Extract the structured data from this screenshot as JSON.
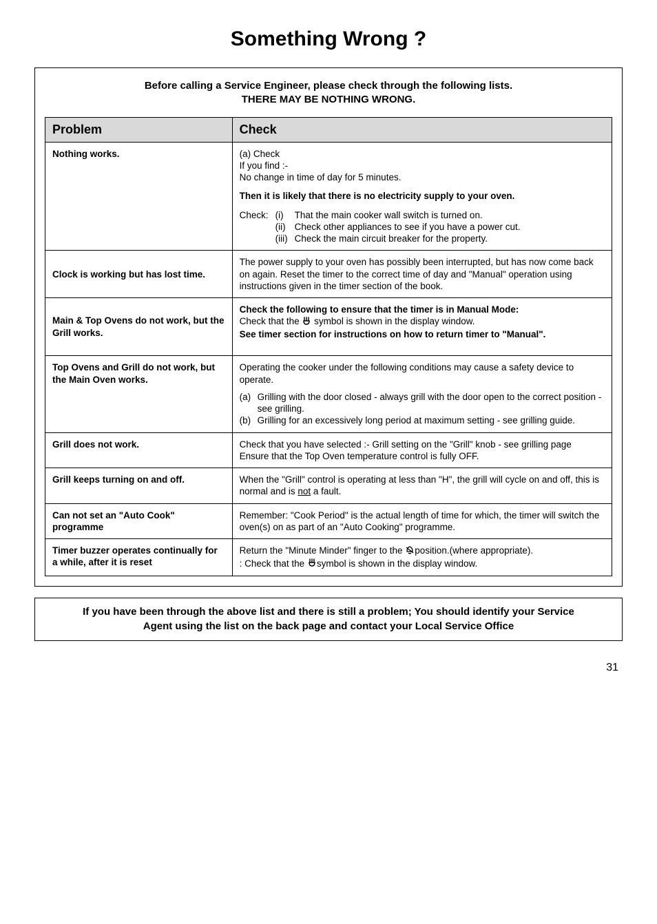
{
  "title": "Something Wrong ?",
  "intro_line1": "Before calling a Service Engineer, please check through the following lists.",
  "intro_line2": "THERE MAY BE NOTHING WRONG.",
  "headers": {
    "problem": "Problem",
    "check": "Check"
  },
  "rows": {
    "nothing_works": {
      "problem": "Nothing works.",
      "a_check": "(a) Check",
      "ifyoufind": "If you find :-",
      "nochange": "No change in time of day for 5 minutes.",
      "then": "Then it is likely that there is no electricity supply to your oven.",
      "check_label": "Check:",
      "i_num": "(i)",
      "i_txt": "That the main cooker wall switch is turned on.",
      "ii_num": "(ii)",
      "ii_txt": "Check other appliances to see if you have a power cut.",
      "iii_num": "(iii)",
      "iii_txt": "Check the main circuit breaker for the property."
    },
    "clock": {
      "problem": "Clock is working but has  lost  time.",
      "check": "The power supply to your oven has possibly been interrupted, but has now come back on again. Reset the timer to the correct time of day and \"Manual\" operation using instructions given in the timer section of the book."
    },
    "main_top": {
      "problem_l1": "Main & Top Ovens do not work, but the Grill works.",
      "check_b1": "Check the following to ensure that the timer is in Manual Mode:",
      "check_l2a": "Check that the ",
      "check_l2b": " symbol is shown in the display window.",
      "check_b2": "See timer section for instructions on how to return timer to \"Manual\"."
    },
    "top_grill": {
      "problem_l1": "Top Ovens and Grill do not work, but the Main Oven works.",
      "check_p1": "Operating the cooker under the following conditions may cause a safety device to operate.",
      "a_lbl": "(a)",
      "a_txt": "Grilling with the door closed - always grill with the door open to the correct position - see grilling.",
      "b_lbl": "(b)",
      "b_txt": "Grilling for an excessively long period at maximum setting - see grilling guide."
    },
    "grill_no_work": {
      "problem": "Grill does not work.",
      "check_l1": "Check that you have selected :-  Grill setting on the \"Grill\" knob - see grilling page",
      "check_l2": "Ensure that the Top Oven temperature control is fully OFF."
    },
    "grill_on_off": {
      "problem": "Grill keeps turning on and off.",
      "check_a": "When the \"Grill\" control is operating at less than \"H\", the grill will cycle on and off, this is normal and is ",
      "check_not": "not",
      "check_b": " a fault."
    },
    "auto_cook": {
      "problem": "Can not set an \"Auto Cook\" programme",
      "check": "Remember: \"Cook Period\" is the actual length of time for which, the timer will switch the oven(s) on as part of an \"Auto Cooking\" programme."
    },
    "buzzer": {
      "problem": "Timer buzzer operates continually for a while, after it is reset",
      "check_l1a": "Return the  \"Minute Minder\" finger to the ",
      "check_l1b": "position.(where appropriate).",
      "check_l2a": ": Check that the ",
      "check_l2b": "symbol is shown in the display window."
    }
  },
  "footer_l1": "If you have been through the above list and there is still a problem; You should identify your Service",
  "footer_l2": "Agent using the list on the back page and contact your Local Service Office",
  "page_number": "31",
  "icons": {
    "pot_svg": "<svg width='14' height='14' viewBox='0 0 14 14'><path d='M4 2 L4 6 M7 2 L7 6 M10 2 L10 6 M3 7 Q3 12 7 12 Q11 12 11 7 Z' fill='none' stroke='#000' stroke-width='1.4' stroke-linecap='round'/></svg>",
    "bell_svg": "<svg width='14' height='14' viewBox='0 0 14 14'><path d='M7 2 Q3 3 3 9 L11 9 Q11 3 7 2 Z M5 11 Q7 13 9 11' fill='none' stroke='#000' stroke-width='1.3'/><line x1='2' y1='3' x2='12' y2='11' stroke='#000' stroke-width='1.3'/></svg>"
  }
}
